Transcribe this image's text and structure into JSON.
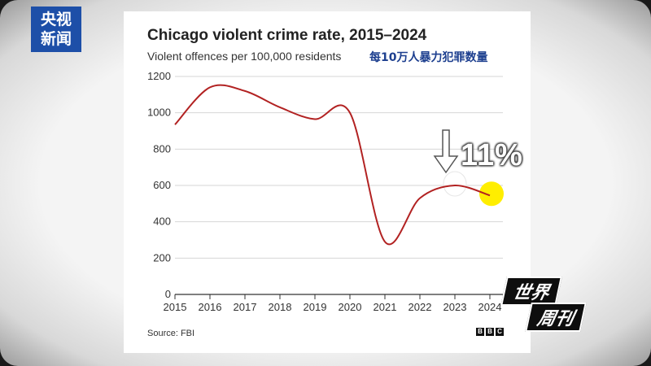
{
  "broadcaster_logo": {
    "line1": "央视",
    "line2": "新闻"
  },
  "show_badge": {
    "line1": "世界",
    "line2": "周刊"
  },
  "cn_caption": "每10万人暴力犯罪数量",
  "annotation": {
    "text": "11%",
    "direction": "down"
  },
  "source": "Source: FBI",
  "brand_mark": [
    "B",
    "B",
    "C"
  ],
  "colors": {
    "line": "#b22222",
    "highlight_end": "#ffee00",
    "highlight_mid": "#ffffff",
    "logo_bg": "#1d4fa8"
  },
  "chart_data": {
    "type": "line",
    "title": "Chicago violent crime rate, 2015–2024",
    "subtitle": "Violent offences per 100,000 residents",
    "xlabel": "",
    "ylabel": "",
    "x": [
      2015,
      2016,
      2017,
      2018,
      2019,
      2020,
      2021,
      2022,
      2023,
      2024
    ],
    "series": [
      {
        "values": [
          935,
          1140,
          1120,
          1030,
          965,
          1000,
          290,
          530,
          600,
          545
        ]
      }
    ],
    "ylim": [
      0,
      1200
    ],
    "yticks": [
      0,
      200,
      400,
      600,
      800,
      1000,
      1200
    ],
    "grid": true,
    "legend": "none"
  }
}
